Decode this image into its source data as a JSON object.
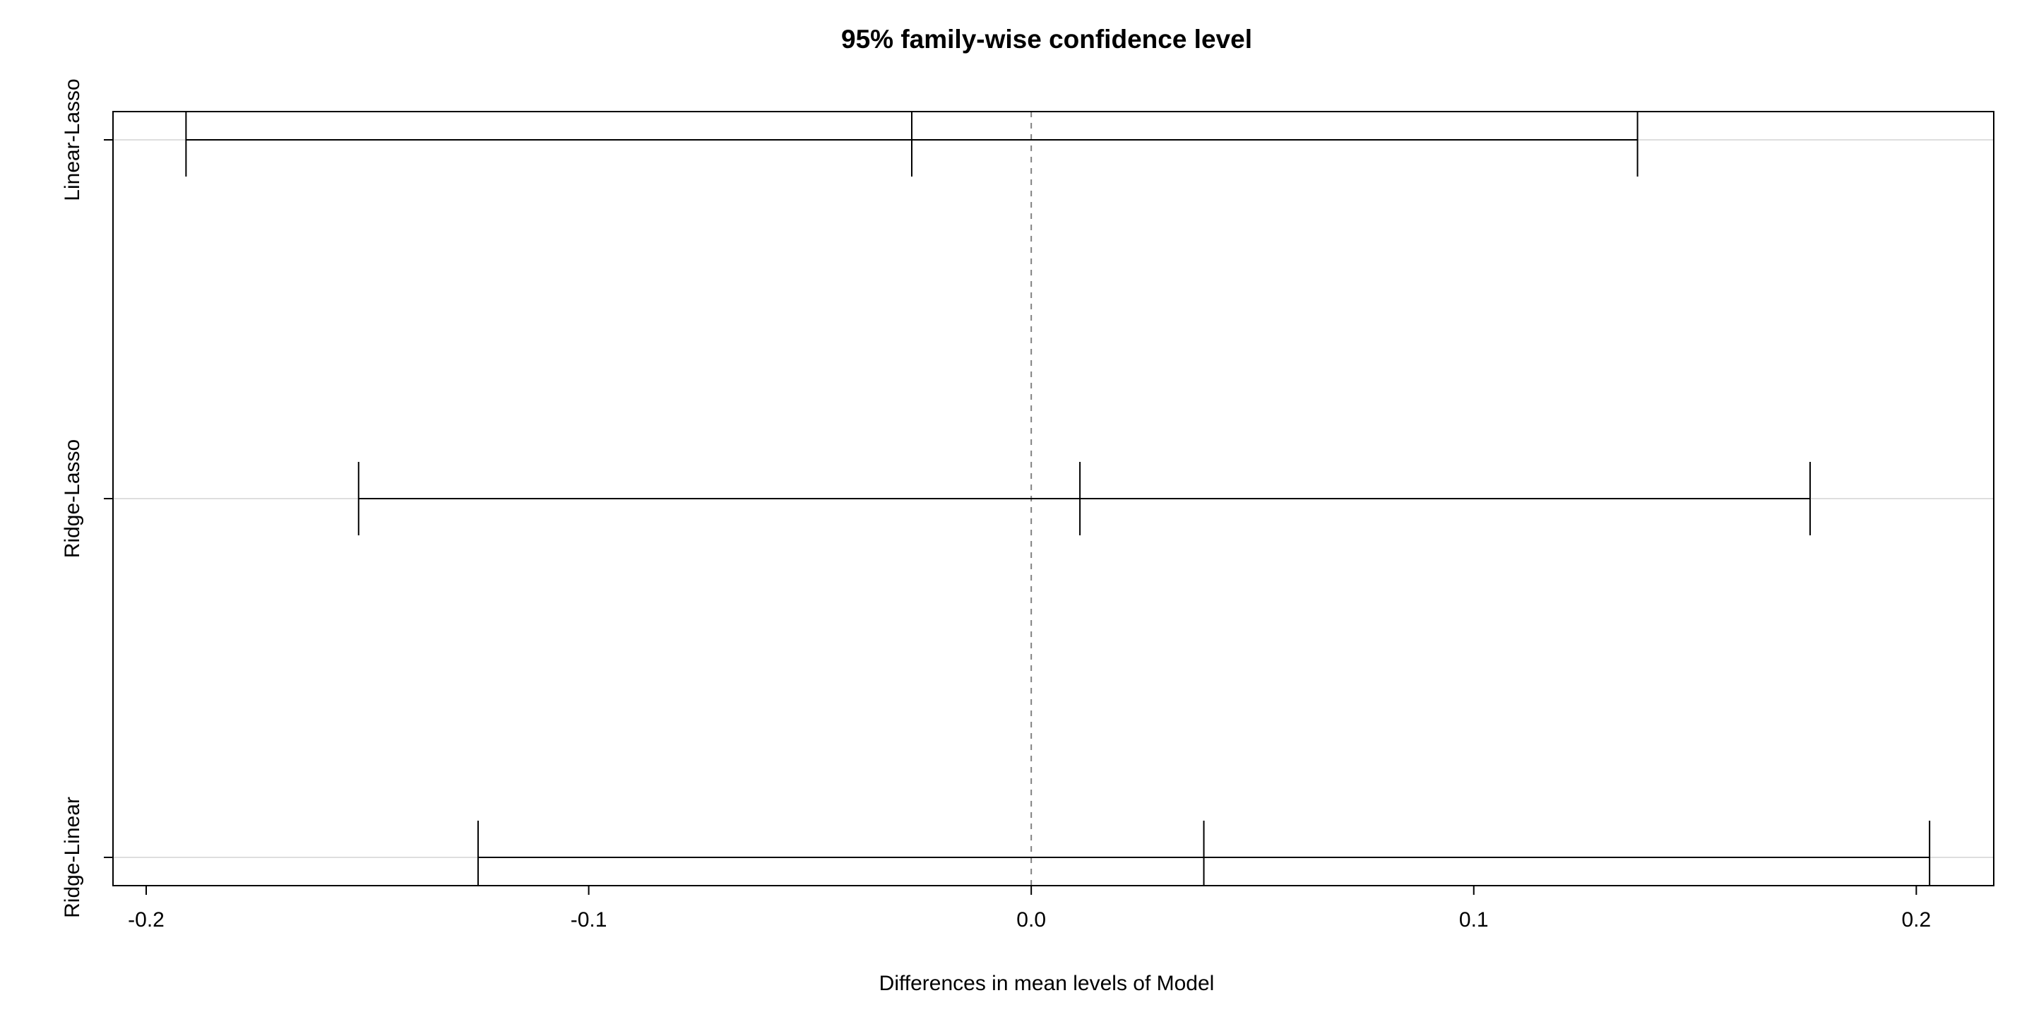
{
  "chart_data": {
    "type": "interval",
    "title": "95% family-wise confidence level",
    "xlabel": "Differences in mean levels of Model",
    "ylabel": "",
    "xlim": [
      -0.2075,
      0.2175
    ],
    "xticks": [
      -0.2,
      -0.1,
      0.0,
      0.1,
      0.2
    ],
    "xtick_labels": [
      "-0.2",
      "-0.1",
      "0.0",
      "0.1",
      "0.2"
    ],
    "reference_line": 0.0,
    "grid": "horizontal lines at comparisons",
    "comparisons": [
      {
        "label": "Linear-Lasso",
        "lwr": -0.191,
        "diff": -0.027,
        "upr": 0.137
      },
      {
        "label": "Ridge-Lasso",
        "lwr": -0.152,
        "diff": 0.011,
        "upr": 0.176
      },
      {
        "label": "Ridge-Linear",
        "lwr": -0.125,
        "diff": 0.039,
        "upr": 0.203
      }
    ],
    "colors": {
      "interval": "#000000",
      "grid": "#d3d3d3",
      "reference": "#808080"
    }
  }
}
